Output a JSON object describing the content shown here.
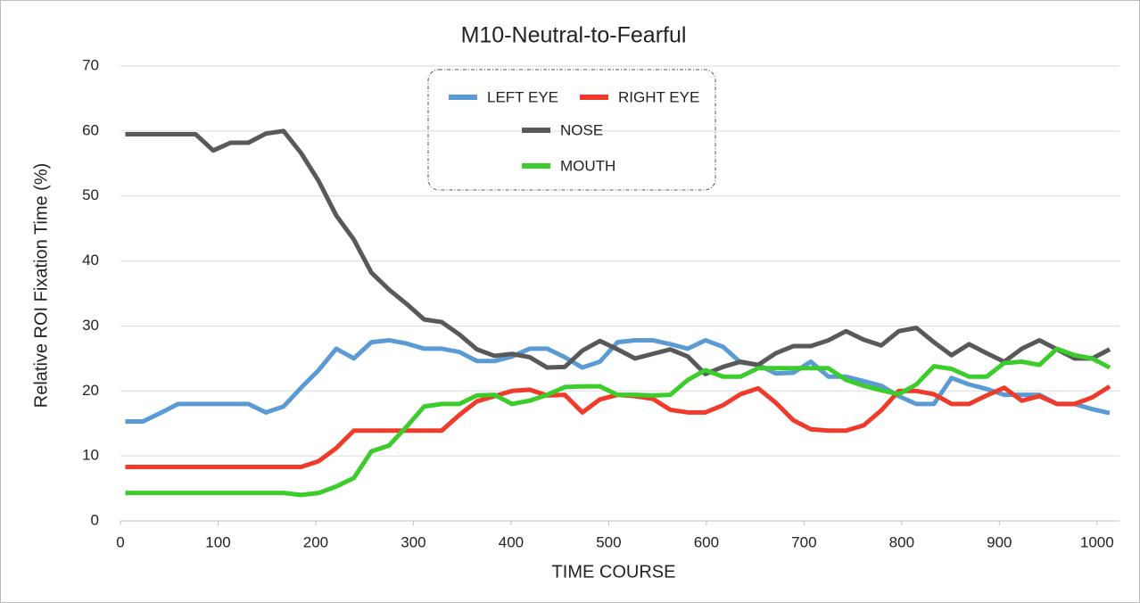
{
  "chart_data": {
    "type": "line",
    "title": "M10-Neutral-to-Fearful",
    "x_label": "TIME  COURSE",
    "y_label": "Relative  ROI  Fixation  Time  (%)",
    "x": [
      5,
      23,
      41,
      59,
      77,
      95,
      113,
      131,
      149,
      167,
      185,
      203,
      221,
      239,
      257,
      275,
      293,
      311,
      329,
      347,
      365,
      383,
      401,
      419,
      437,
      455,
      473,
      491,
      509,
      527,
      545,
      563,
      581,
      599,
      617,
      635,
      653,
      671,
      689,
      707,
      725,
      743,
      761,
      779,
      797,
      815,
      833,
      851,
      869,
      887,
      905,
      923,
      941,
      959,
      977,
      995,
      1013
    ],
    "series": [
      {
        "name": "LEFT EYE",
        "color": "#5b9bd5",
        "values": [
          15.3,
          15.3,
          16.6,
          18,
          18,
          18,
          18,
          18,
          16.7,
          17.6,
          20.5,
          23.2,
          26.5,
          25,
          27.5,
          27.8,
          27.3,
          26.5,
          26.5,
          26,
          24.6,
          24.6,
          25.3,
          26.5,
          26.5,
          25.2,
          23.6,
          24.5,
          27.5,
          27.8,
          27.8,
          27.2,
          26.5,
          27.8,
          26.8,
          24.4,
          24,
          22.7,
          22.8,
          24.5,
          22.2,
          22.2,
          21.5,
          20.8,
          19.2,
          18,
          18,
          22,
          21,
          20.3,
          19.4,
          19.4,
          19.4,
          18,
          18,
          17.2,
          16.6
        ]
      },
      {
        "name": "RIGHT EYE",
        "color": "#f03a2a",
        "values": [
          8.3,
          8.3,
          8.3,
          8.3,
          8.3,
          8.3,
          8.3,
          8.3,
          8.3,
          8.3,
          8.3,
          9.2,
          11.2,
          13.9,
          13.9,
          13.9,
          13.9,
          13.9,
          13.9,
          16.3,
          18.4,
          19.2,
          20,
          20.2,
          19.3,
          19.4,
          16.7,
          18.7,
          19.4,
          19.2,
          18.8,
          17.1,
          16.7,
          16.7,
          17.8,
          19.5,
          20.4,
          18.2,
          15.5,
          14.1,
          13.9,
          13.9,
          14.7,
          17,
          20,
          20,
          19.5,
          18,
          18,
          19.3,
          20.5,
          18.5,
          19.2,
          18,
          18,
          19,
          20.7
        ]
      },
      {
        "name": "NOSE",
        "color": "#595959",
        "values": [
          59.5,
          59.5,
          59.5,
          59.5,
          59.5,
          57,
          58.2,
          58.2,
          59.6,
          60,
          56.6,
          52.3,
          47,
          43.3,
          38.2,
          35.6,
          33.4,
          31,
          30.6,
          28.7,
          26.4,
          25.4,
          25.7,
          25.2,
          23.6,
          23.7,
          26.2,
          27.7,
          26.4,
          25,
          25.7,
          26.4,
          25.3,
          22.6,
          23.7,
          24.5,
          24,
          25.8,
          26.9,
          26.9,
          27.8,
          29.2,
          27.9,
          27,
          29.2,
          29.7,
          27.5,
          25.5,
          27.2,
          25.8,
          24.5,
          26.5,
          27.8,
          26.4,
          25,
          25,
          26.4
        ]
      },
      {
        "name": "MOUTH",
        "color": "#3ccc2c",
        "values": [
          4.3,
          4.3,
          4.3,
          4.3,
          4.3,
          4.3,
          4.3,
          4.3,
          4.3,
          4.3,
          4,
          4.3,
          5.3,
          6.6,
          10.7,
          11.6,
          14.5,
          17.6,
          18,
          18,
          19.3,
          19.4,
          18,
          18.5,
          19.4,
          20.6,
          20.7,
          20.7,
          19.4,
          19.4,
          19.3,
          19.4,
          21.7,
          23.2,
          22.2,
          22.2,
          23.5,
          23.5,
          23.5,
          23.5,
          23.5,
          21.7,
          20.8,
          20.1,
          19.5,
          21,
          23.8,
          23.4,
          22.2,
          22.2,
          24.3,
          24.5,
          24,
          26.5,
          25.5,
          25,
          23.6
        ]
      }
    ],
    "xlim": [
      0,
      1023
    ],
    "xticks": [
      0,
      100,
      200,
      300,
      400,
      500,
      600,
      700,
      800,
      900,
      1000
    ],
    "ylim": [
      0,
      70
    ],
    "yticks": [
      0,
      10,
      20,
      30,
      40,
      50,
      60,
      70
    ],
    "grid": true
  }
}
